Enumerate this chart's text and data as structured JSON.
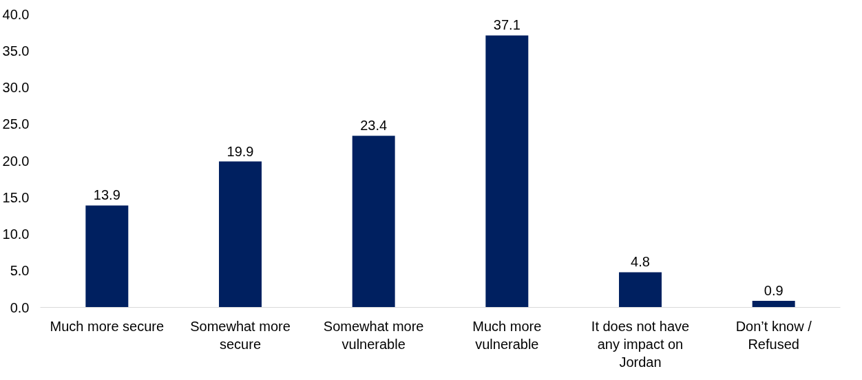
{
  "chart_data": {
    "type": "bar",
    "categories": [
      "Much more secure",
      "Somewhat more secure",
      "Somewhat more vulnerable",
      "Much more vulnerable",
      "It does not have any impact on Jordan",
      "Don’t know / Refused"
    ],
    "values": [
      13.9,
      19.9,
      23.4,
      37.1,
      4.8,
      0.9
    ],
    "color": "#002060",
    "ylim": [
      0,
      40
    ],
    "yticks": [
      {
        "value": 0,
        "label": "0.0"
      },
      {
        "value": 5,
        "label": "5.0"
      },
      {
        "value": 10,
        "label": "10.0"
      },
      {
        "value": 15,
        "label": "15.0"
      },
      {
        "value": 20,
        "label": "20.0"
      },
      {
        "value": 25,
        "label": "25.0"
      },
      {
        "value": 30,
        "label": "30.0"
      },
      {
        "value": 35,
        "label": "35.0"
      },
      {
        "value": 40,
        "label": "40.0"
      }
    ],
    "grid": false,
    "data_labels": true
  }
}
